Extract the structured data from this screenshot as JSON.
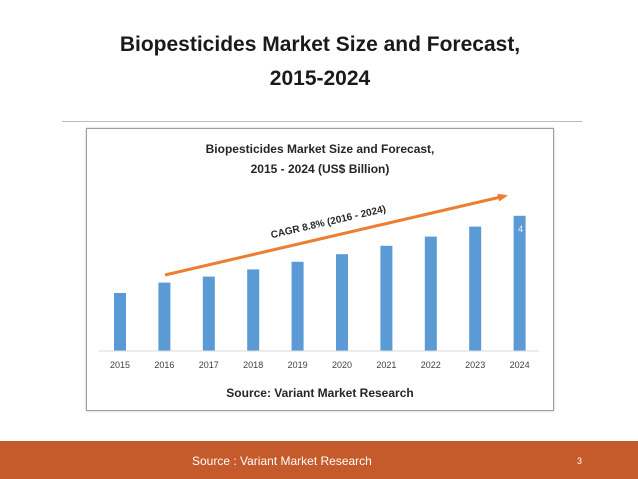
{
  "slide": {
    "title_line1": "Biopesticides Market Size and Forecast,",
    "title_line2": "2015-2024"
  },
  "footer": {
    "source": "Source : Variant Market Research",
    "page_number": "3"
  },
  "colors": {
    "bar": "#5b9bd5",
    "arrow": "#ed7d31",
    "footer": "#c55a2b"
  },
  "chart_data": {
    "type": "bar",
    "title": "Biopesticides Market Size and Forecast,",
    "subtitle": "2015 - 2024 (US$ Billion)",
    "categories": [
      "2015",
      "2016",
      "2017",
      "2018",
      "2019",
      "2020",
      "2021",
      "2022",
      "2023",
      "2024"
    ],
    "values": [
      1.45,
      1.71,
      1.86,
      2.04,
      2.23,
      2.42,
      2.63,
      2.86,
      3.11,
      3.38
    ],
    "end_label": "4",
    "annotation": "CAGR 8.8% (2016 - 2024)",
    "source": "Source: Variant Market Research",
    "xlabel": "",
    "ylabel": "",
    "ylim": [
      0,
      4
    ],
    "grid": false,
    "legend": "none"
  }
}
